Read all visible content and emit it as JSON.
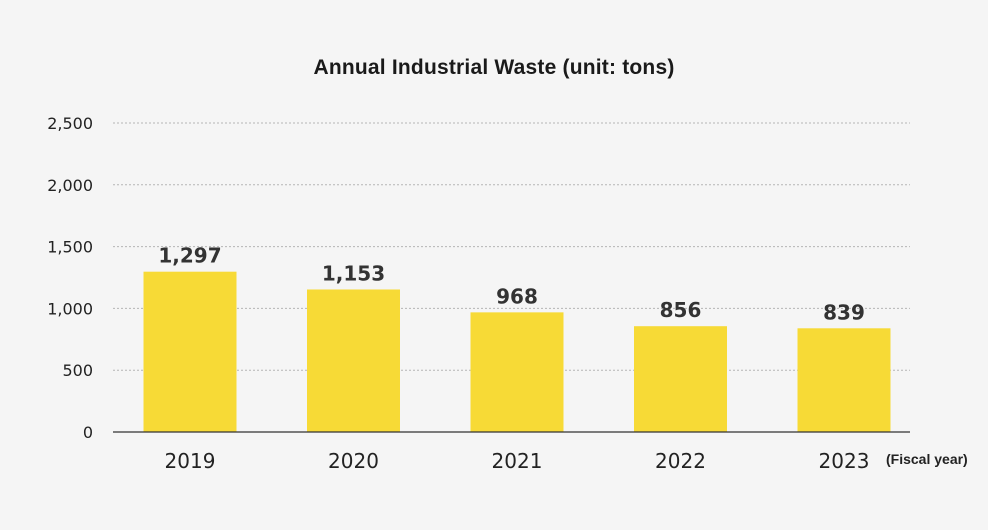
{
  "chart_data": {
    "type": "bar",
    "title": "Annual Industrial Waste (unit: tons)",
    "xlabel": "(Fiscal year)",
    "ylabel": "",
    "categories": [
      "2019",
      "2020",
      "2021",
      "2022",
      "2023"
    ],
    "values": [
      1297,
      1153,
      968,
      856,
      839
    ],
    "data_labels": [
      "1,297",
      "1,153",
      "968",
      "856",
      "839"
    ],
    "ylim": [
      0,
      2500
    ],
    "yticks": [
      0,
      500,
      1000,
      1500,
      2000,
      2500
    ],
    "ytick_labels": [
      "0",
      "500",
      "1,000",
      "1,500",
      "2,000",
      "2,500"
    ],
    "grid": "horizontal dotted",
    "legend": "none",
    "bar_color": "#f7da36",
    "background_color": "#f5f5f5"
  }
}
